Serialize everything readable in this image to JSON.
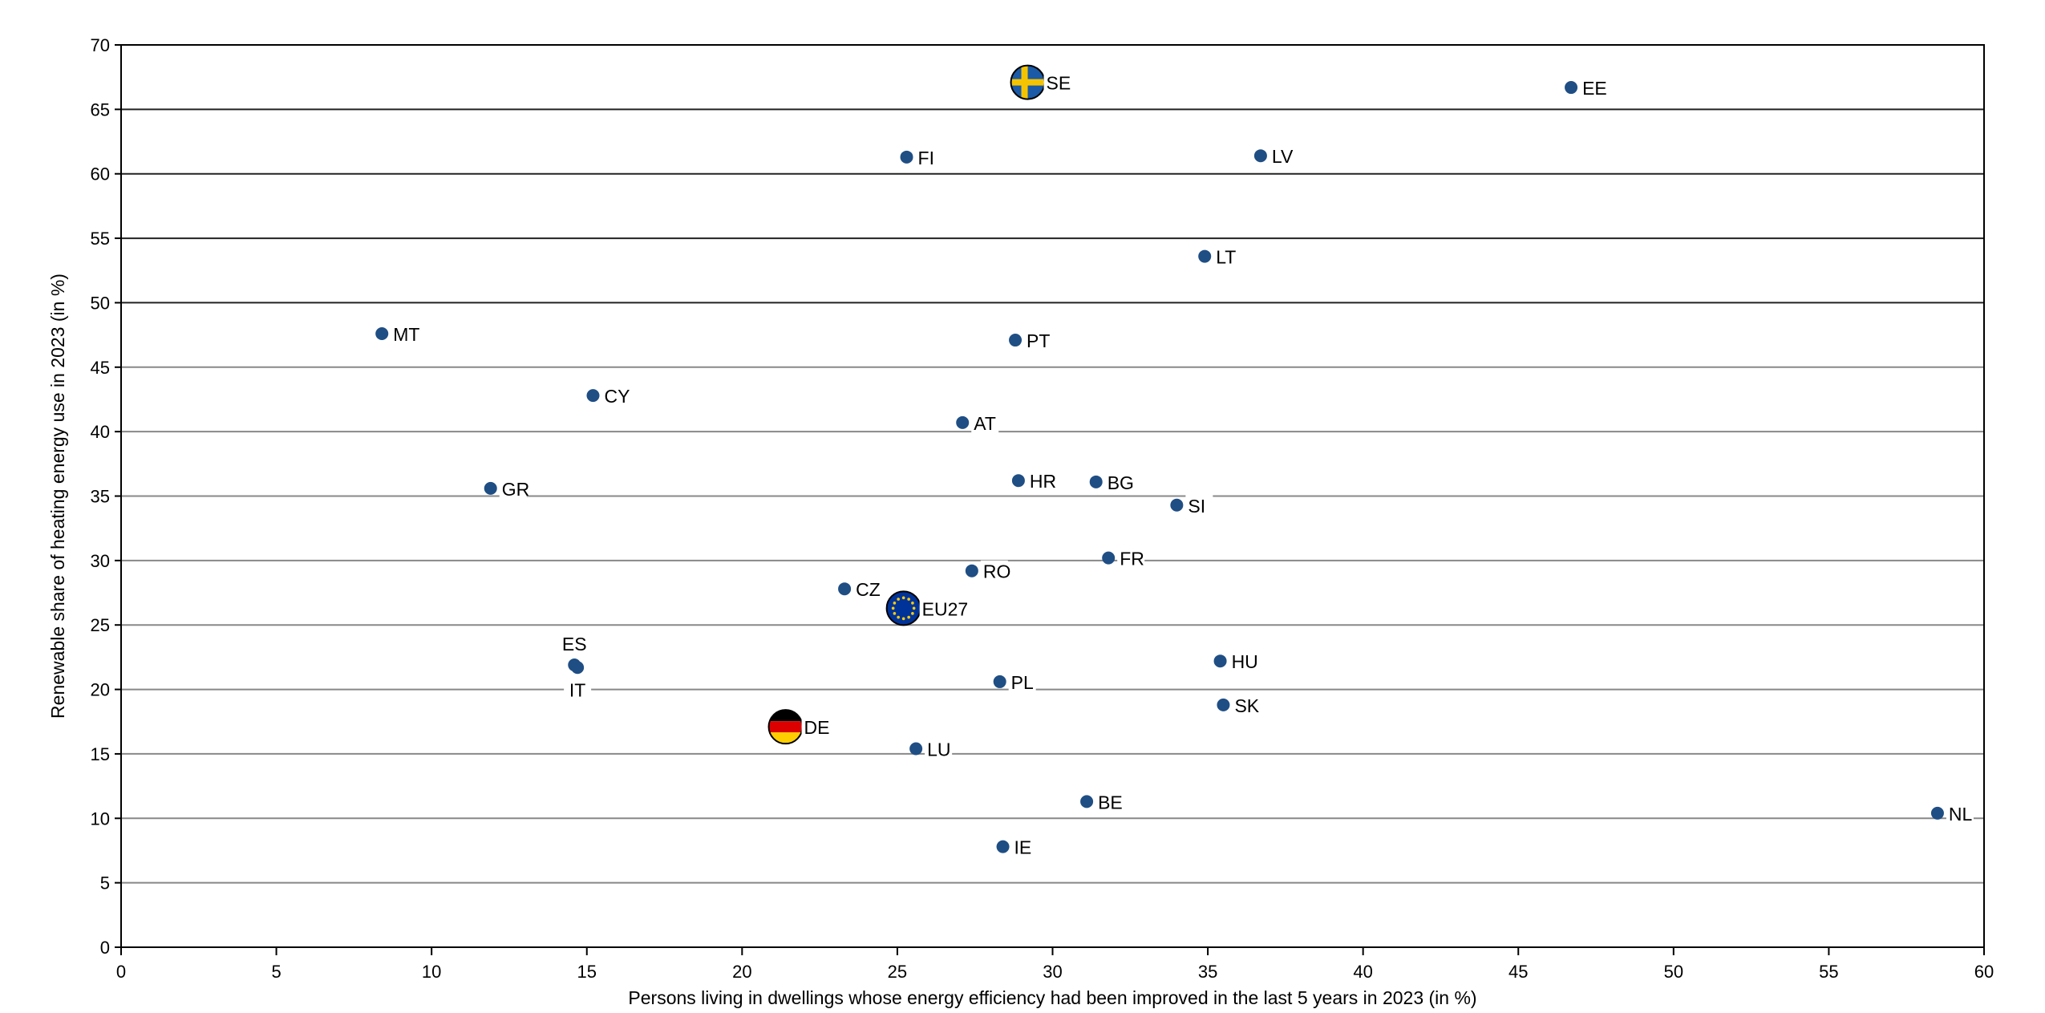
{
  "chart_data": {
    "type": "scatter",
    "title": "",
    "xlabel": "Persons living in dwellings whose energy efficiency had been improved in the last 5 years in 2023 (in %)",
    "ylabel": "Renewable share of heating energy use in 2023 (in %)",
    "xlim": [
      0,
      60
    ],
    "ylim": [
      0,
      70
    ],
    "xticks": [
      0,
      5,
      10,
      15,
      20,
      25,
      30,
      35,
      40,
      45,
      50,
      55,
      60
    ],
    "yticks": [
      0,
      5,
      10,
      15,
      20,
      25,
      30,
      35,
      40,
      45,
      50,
      55,
      60,
      65,
      70
    ],
    "grid": "horizontal",
    "marker_color": "#1f4e84",
    "points": [
      {
        "label": "SE",
        "x": 29.2,
        "y": 67.1,
        "marker": "flag-sweden"
      },
      {
        "label": "EE",
        "x": 46.7,
        "y": 66.7
      },
      {
        "label": "FI",
        "x": 25.3,
        "y": 61.3
      },
      {
        "label": "LV",
        "x": 36.7,
        "y": 61.4
      },
      {
        "label": "LT",
        "x": 34.9,
        "y": 53.6
      },
      {
        "label": "MT",
        "x": 8.4,
        "y": 47.6
      },
      {
        "label": "PT",
        "x": 28.8,
        "y": 47.1
      },
      {
        "label": "CY",
        "x": 15.2,
        "y": 42.8
      },
      {
        "label": "AT",
        "x": 27.1,
        "y": 40.7
      },
      {
        "label": "GR",
        "x": 11.9,
        "y": 35.6
      },
      {
        "label": "HR",
        "x": 28.9,
        "y": 36.2
      },
      {
        "label": "BG",
        "x": 31.4,
        "y": 36.1
      },
      {
        "label": "SI",
        "x": 34.0,
        "y": 34.3
      },
      {
        "label": "FR",
        "x": 31.8,
        "y": 30.2
      },
      {
        "label": "RO",
        "x": 27.4,
        "y": 29.2
      },
      {
        "label": "CZ",
        "x": 23.3,
        "y": 27.8
      },
      {
        "label": "EU27",
        "x": 25.2,
        "y": 26.3,
        "marker": "flag-eu"
      },
      {
        "label": "ES",
        "x": 14.6,
        "y": 21.9
      },
      {
        "label": "IT",
        "x": 14.7,
        "y": 21.7
      },
      {
        "label": "HU",
        "x": 35.4,
        "y": 22.2
      },
      {
        "label": "PL",
        "x": 28.3,
        "y": 20.6
      },
      {
        "label": "SK",
        "x": 35.5,
        "y": 18.8
      },
      {
        "label": "DE",
        "x": 21.4,
        "y": 17.1,
        "marker": "flag-germany"
      },
      {
        "label": "LU",
        "x": 25.6,
        "y": 15.4
      },
      {
        "label": "BE",
        "x": 31.1,
        "y": 11.3
      },
      {
        "label": "NL",
        "x": 58.5,
        "y": 10.4
      },
      {
        "label": "IE",
        "x": 28.4,
        "y": 7.8
      }
    ]
  }
}
